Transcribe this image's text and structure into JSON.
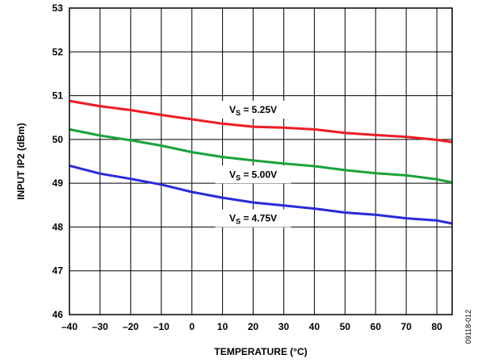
{
  "chart_data": {
    "type": "line",
    "xlabel": "TEMPERATURE (°C)",
    "ylabel": "INPUT IP2 (dBm)",
    "xlim": [
      -40,
      85
    ],
    "ylim": [
      46,
      53
    ],
    "xticks": [
      -40,
      -30,
      -20,
      -10,
      0,
      10,
      20,
      30,
      40,
      50,
      60,
      70,
      80
    ],
    "yticks": [
      46,
      47,
      48,
      49,
      50,
      51,
      52,
      53
    ],
    "grid": true,
    "figure_id": "09118-012",
    "series": [
      {
        "name": "VS = 5.25V",
        "label_main": "V",
        "label_sub": "S",
        "label_value": " = 5.25V",
        "color": "#ee1c25",
        "x": [
          -40,
          -30,
          -20,
          -10,
          0,
          10,
          20,
          30,
          40,
          50,
          60,
          70,
          80,
          85
        ],
        "y": [
          50.88,
          50.76,
          50.67,
          50.56,
          50.46,
          50.36,
          50.29,
          50.27,
          50.23,
          50.15,
          50.1,
          50.06,
          49.99,
          49.94
        ]
      },
      {
        "name": "VS = 5.00V",
        "label_main": "V",
        "label_sub": "S",
        "label_value": " = 5.00V",
        "color": "#1aa33a",
        "x": [
          -40,
          -30,
          -20,
          -10,
          0,
          10,
          20,
          30,
          40,
          50,
          60,
          70,
          80,
          85
        ],
        "y": [
          50.23,
          50.09,
          49.98,
          49.86,
          49.71,
          49.6,
          49.52,
          49.45,
          49.39,
          49.3,
          49.23,
          49.18,
          49.09,
          49.02
        ]
      },
      {
        "name": "VS = 4.75V",
        "label_main": "V",
        "label_sub": "S",
        "label_value": " = 4.75V",
        "color": "#2b2bd9",
        "x": [
          -40,
          -30,
          -20,
          -10,
          0,
          10,
          20,
          30,
          40,
          50,
          60,
          70,
          80,
          85
        ],
        "y": [
          49.4,
          49.22,
          49.1,
          48.97,
          48.8,
          48.67,
          48.56,
          48.49,
          48.42,
          48.33,
          48.28,
          48.2,
          48.15,
          48.08
        ]
      }
    ]
  }
}
